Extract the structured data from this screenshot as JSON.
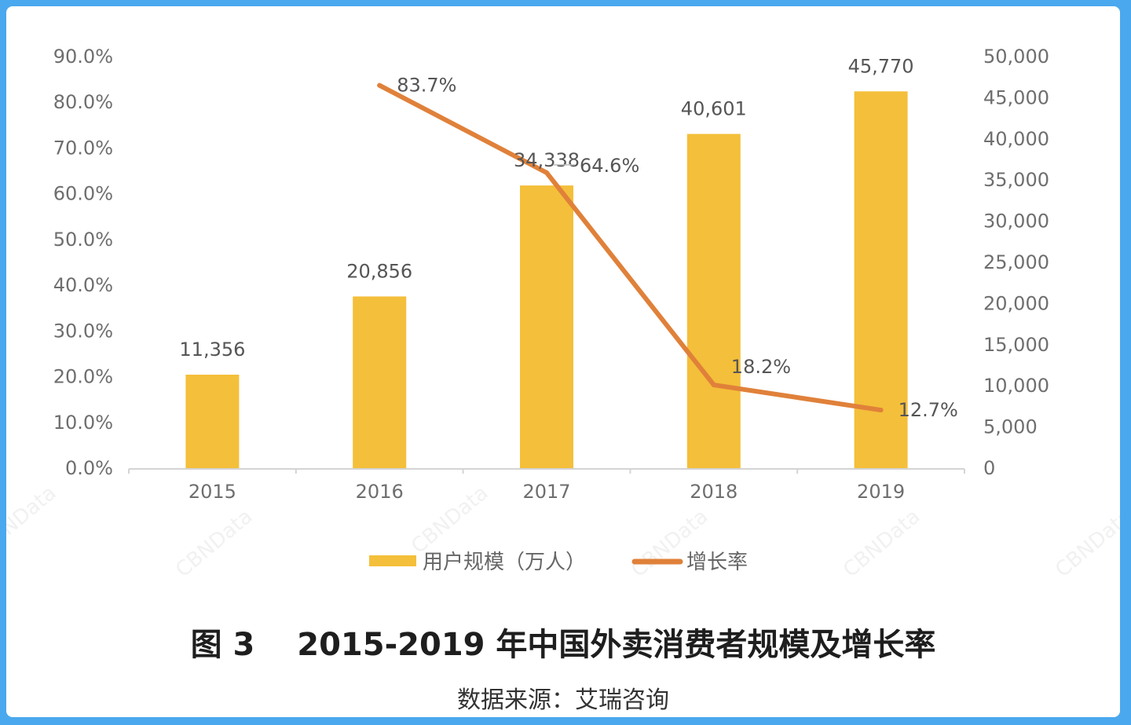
{
  "chart_data": {
    "type": "bar",
    "categories": [
      "2015",
      "2016",
      "2017",
      "2018",
      "2019"
    ],
    "series": [
      {
        "name": "用户规模（万人）",
        "type": "bar",
        "axis": "right",
        "values": [
          11356,
          20856,
          34338,
          40601,
          45770
        ],
        "labels": [
          "11,356",
          "20,856",
          "34,338",
          "40,601",
          "45,770"
        ],
        "color": "#f4bf3a"
      },
      {
        "name": "增长率",
        "type": "line",
        "axis": "left",
        "values": [
          null,
          83.7,
          64.6,
          18.2,
          12.7
        ],
        "labels": [
          "",
          "83.7%",
          "64.6%",
          "18.2%",
          "12.7%"
        ],
        "color": "#e0813a"
      }
    ],
    "y_left": {
      "ylim": [
        0,
        90
      ],
      "ticks": [
        "0.0%",
        "10.0%",
        "20.0%",
        "30.0%",
        "40.0%",
        "50.0%",
        "60.0%",
        "70.0%",
        "80.0%",
        "90.0%"
      ]
    },
    "y_right": {
      "ylim": [
        0,
        50000
      ],
      "ticks": [
        "0",
        "5,000",
        "10,000",
        "15,000",
        "20,000",
        "25,000",
        "30,000",
        "35,000",
        "40,000",
        "45,000",
        "50,000"
      ]
    },
    "legend": "bottom",
    "grid": false,
    "title": "图 3　 2015-2019 年中国外卖消费者规模及增长率",
    "source": "数据来源：艾瑞咨询"
  },
  "watermark": "CBNData"
}
